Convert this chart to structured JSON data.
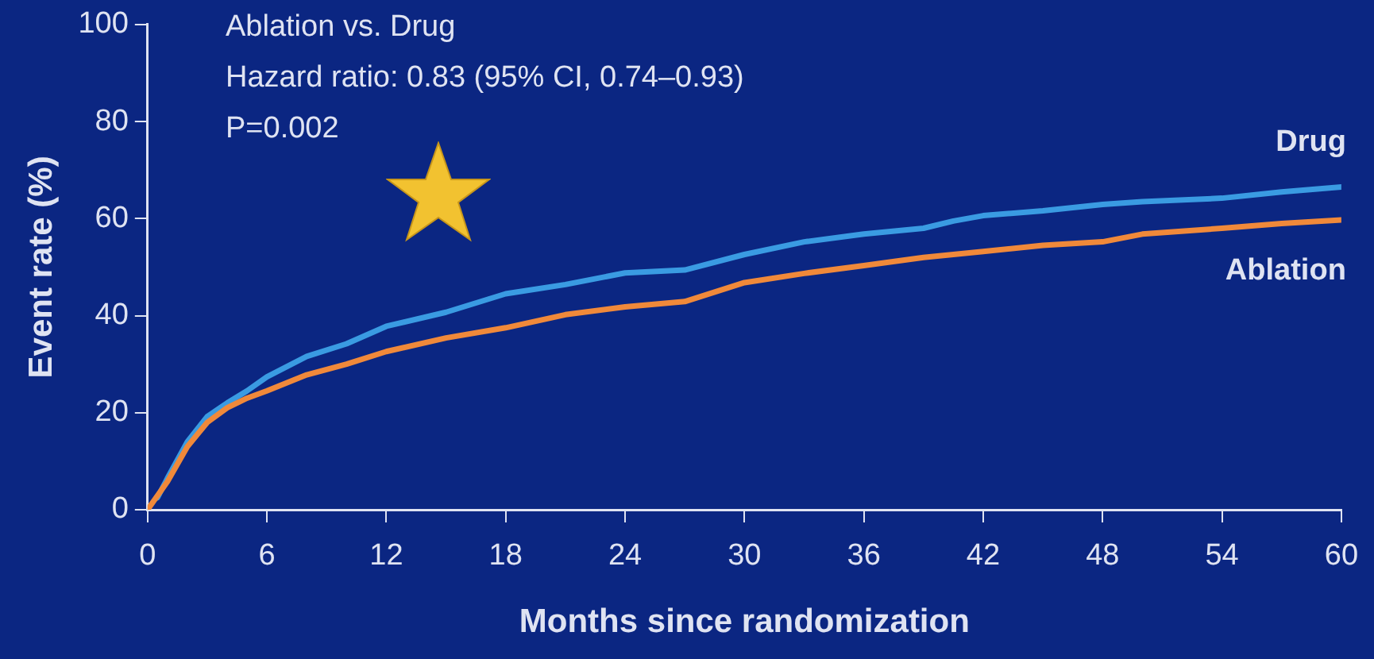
{
  "chart_data": {
    "type": "line",
    "xlabel": "Months since randomization",
    "ylabel": "Event rate (%)",
    "annotations": [
      "Ablation vs. Drug",
      "Hazard ratio: 0.83 (95% CI, 0.74–0.93)",
      "P=0.002"
    ],
    "xlim": [
      0,
      60
    ],
    "xticks": [
      0,
      6,
      12,
      18,
      24,
      30,
      36,
      42,
      48,
      54,
      60
    ],
    "ylim": [
      0,
      100
    ],
    "yticks": [
      0,
      20,
      40,
      60,
      80,
      100
    ],
    "grid": false,
    "legend": false,
    "marker": "none",
    "line_style": "solid",
    "series": [
      {
        "name": "Drug",
        "color": "#3a9be2",
        "x": [
          0.5,
          1,
          2,
          3,
          4,
          5,
          6,
          8,
          10,
          12,
          15,
          18,
          21,
          24,
          27,
          30,
          33,
          36,
          39,
          40.5,
          42,
          45,
          48,
          50,
          54,
          57,
          60
        ],
        "values": [
          2.5,
          6.5,
          14,
          19.2,
          22,
          24.5,
          27.4,
          31.6,
          34.2,
          37.8,
          40.7,
          44.5,
          46.4,
          48.8,
          49.4,
          52.6,
          55.2,
          56.8,
          58,
          59.5,
          60.6,
          61.6,
          62.9,
          63.5,
          64.2,
          65.5,
          66.5
        ]
      },
      {
        "name": "Ablation",
        "color": "#f0893a",
        "x": [
          0,
          1,
          2,
          3,
          4,
          5,
          6,
          8,
          10,
          12,
          15,
          18,
          21,
          24,
          27,
          30,
          33,
          36,
          39,
          42,
          45,
          48,
          50,
          54,
          57,
          60
        ],
        "values": [
          0,
          5.8,
          13,
          18,
          21,
          23,
          24.5,
          27.8,
          30,
          32.6,
          35.4,
          37.5,
          40.2,
          41.8,
          42.9,
          46.8,
          48.7,
          50.3,
          52,
          53.2,
          54.5,
          55.2,
          56.8,
          58,
          59,
          59.7
        ]
      }
    ]
  }
}
